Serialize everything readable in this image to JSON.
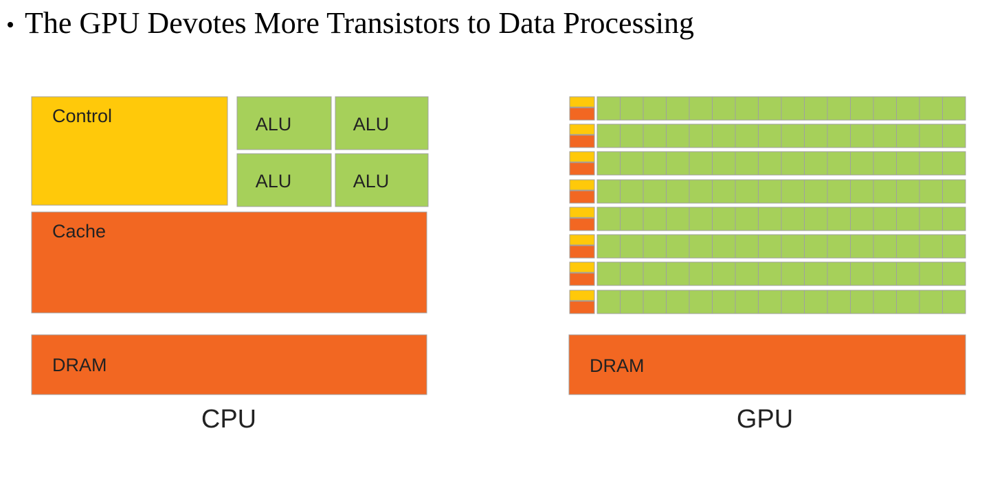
{
  "header": {
    "title": "The GPU Devotes More Transistors to Data Processing"
  },
  "cpu": {
    "control": "Control",
    "alus": [
      "ALU",
      "ALU",
      "ALU",
      "ALU"
    ],
    "cache": "Cache",
    "dram": "DRAM",
    "label": "CPU"
  },
  "gpu": {
    "dram": "DRAM",
    "label": "GPU"
  }
}
